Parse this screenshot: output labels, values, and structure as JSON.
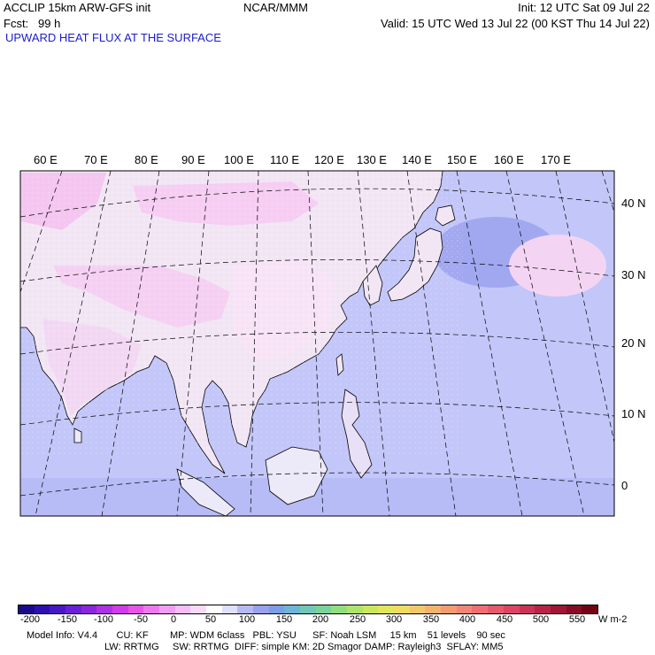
{
  "header": {
    "left_line1": "ACCLIP 15km ARW-GFS init",
    "left_line2": "Fcst:   99 h",
    "center": "NCAR/MMM",
    "right_line1": "Init: 12 UTC Sat 09 Jul 22",
    "right_line2": "Valid: 15 UTC Wed 13 Jul 22 (00 KST Thu 14 Jul 22)"
  },
  "field_title": "UPWARD HEAT FLUX AT THE SURFACE",
  "map": {
    "longitude_labels": [
      "60 E",
      "70 E",
      "80 E",
      "90 E",
      "100 E",
      "110 E",
      "120 E",
      "130 E",
      "140 E",
      "150 E",
      "160 E",
      "170 E"
    ],
    "latitude_labels": [
      "40 N",
      "30 N",
      "20 N",
      "10 N",
      "0"
    ],
    "colors": {
      "ocean_fill": "#c3c6f9",
      "land_fill": "#f2e6f4",
      "high_flux_pink": "#f6b8ef",
      "low_flux_blue": "#9aa0ee",
      "coast": "#000000",
      "grid": "#000000"
    }
  },
  "colorbar": {
    "tick_labels": [
      "-200",
      "-150",
      "-100",
      "-50",
      "0",
      "50",
      "100",
      "150",
      "200",
      "250",
      "300",
      "350",
      "400",
      "450",
      "500",
      "550"
    ],
    "units": "W m-2",
    "colors": [
      "#1a0a8c",
      "#2e0fb0",
      "#4818c6",
      "#6a20d6",
      "#8c26de",
      "#b030e4",
      "#d03ce8",
      "#e654e8",
      "#ee78ee",
      "#f29cf2",
      "#f6bdf6",
      "#f9d9f9",
      "#ffffff",
      "#dfe0fb",
      "#b6baf4",
      "#9aa2ee",
      "#7d9ee6",
      "#6fb5d6",
      "#72c8b8",
      "#7ad39a",
      "#92de7e",
      "#aee46a",
      "#cbe760",
      "#e2e65e",
      "#efdc62",
      "#f2c86a",
      "#f3b26e",
      "#f39c72",
      "#f28676",
      "#ee6f74",
      "#e65a6c",
      "#dc4662",
      "#cc3456",
      "#b82444",
      "#a01634",
      "#880c24",
      "#700414"
    ]
  },
  "model_info": {
    "line1": "Model Info: V4.4       CU: KF        MP: WDM 6class   PBL: YSU      SF: Noah LSM     15 km    51 levels    90 sec",
    "line2": "LW: RRTMG     SW: RRTMG  DIFF: simple KM: 2D Smagor DAMP: Rayleigh3  SFLAY: MM5"
  }
}
